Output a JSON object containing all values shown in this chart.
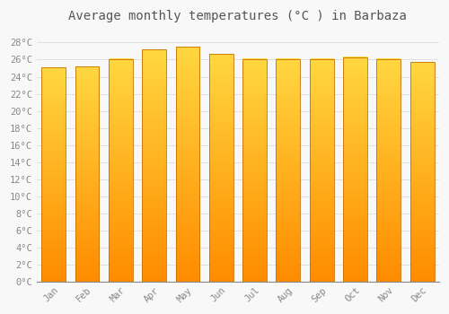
{
  "title": "Average monthly temperatures (°C ) in Barbaza",
  "months": [
    "Jan",
    "Feb",
    "Mar",
    "Apr",
    "May",
    "Jun",
    "Jul",
    "Aug",
    "Sep",
    "Oct",
    "Nov",
    "Dec"
  ],
  "temperatures": [
    25.1,
    25.2,
    26.1,
    27.2,
    27.5,
    26.7,
    26.1,
    26.1,
    26.1,
    26.3,
    26.1,
    25.7
  ],
  "bar_color_top": "#FFD740",
  "bar_color_bottom": "#FF8C00",
  "bar_edge_color": "#C87000",
  "yticks": [
    0,
    2,
    4,
    6,
    8,
    10,
    12,
    14,
    16,
    18,
    20,
    22,
    24,
    26,
    28
  ],
  "ytick_labels": [
    "0°C",
    "2°C",
    "4°C",
    "6°C",
    "8°C",
    "10°C",
    "12°C",
    "14°C",
    "16°C",
    "18°C",
    "20°C",
    "22°C",
    "24°C",
    "26°C",
    "28°C"
  ],
  "ylim": [
    0,
    29.5
  ],
  "background_color": "#F8F8F8",
  "grid_color": "#E0E0E0",
  "title_fontsize": 10,
  "tick_fontsize": 7.5,
  "tick_color": "#888888",
  "bar_width": 0.72,
  "gradient_steps": 100
}
